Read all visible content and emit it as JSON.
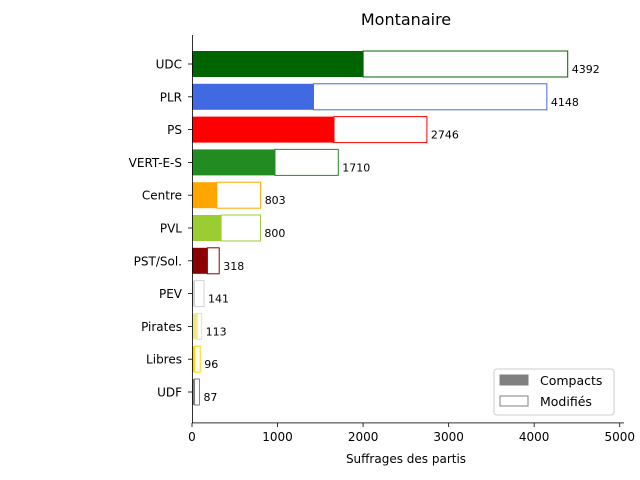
{
  "chart_data": {
    "type": "bar",
    "orientation": "horizontal",
    "stacked": true,
    "title": "Montanaire",
    "xlabel": "Suffrages des partis",
    "ylabel": "",
    "xlim": [
      0,
      5050
    ],
    "xticks": [
      0,
      1000,
      2000,
      3000,
      4000,
      5000
    ],
    "grid": false,
    "legend_position": "bottom-right",
    "categories": [
      "UDC",
      "PLR",
      "PS",
      "VERT-E-S",
      "Centre",
      "PVL",
      "PST/Sol.",
      "PEV",
      "Pirates",
      "Libres",
      "UDF"
    ],
    "colors": [
      "#006400",
      "#4169E1",
      "#FF0000",
      "#228B22",
      "#FFA500",
      "#9ACD32",
      "#8B0000",
      "#D3D3D3",
      "#F0E68C",
      "#FFD700",
      "#808080"
    ],
    "totals": [
      4392,
      4148,
      2746,
      1710,
      803,
      800,
      318,
      141,
      113,
      96,
      87
    ],
    "series": [
      {
        "name": "Compacts",
        "values": [
          2000,
          1420,
          1660,
          970,
          290,
          340,
          180,
          30,
          60,
          30,
          30
        ]
      },
      {
        "name": "Modifiés",
        "values": [
          2392,
          2728,
          1086,
          740,
          513,
          460,
          138,
          111,
          53,
          66,
          57
        ]
      }
    ],
    "legend": [
      {
        "label": "Compacts",
        "swatch_fill": "#808080"
      },
      {
        "label": "Modifiés",
        "swatch_fill": "#ffffff"
      }
    ]
  }
}
